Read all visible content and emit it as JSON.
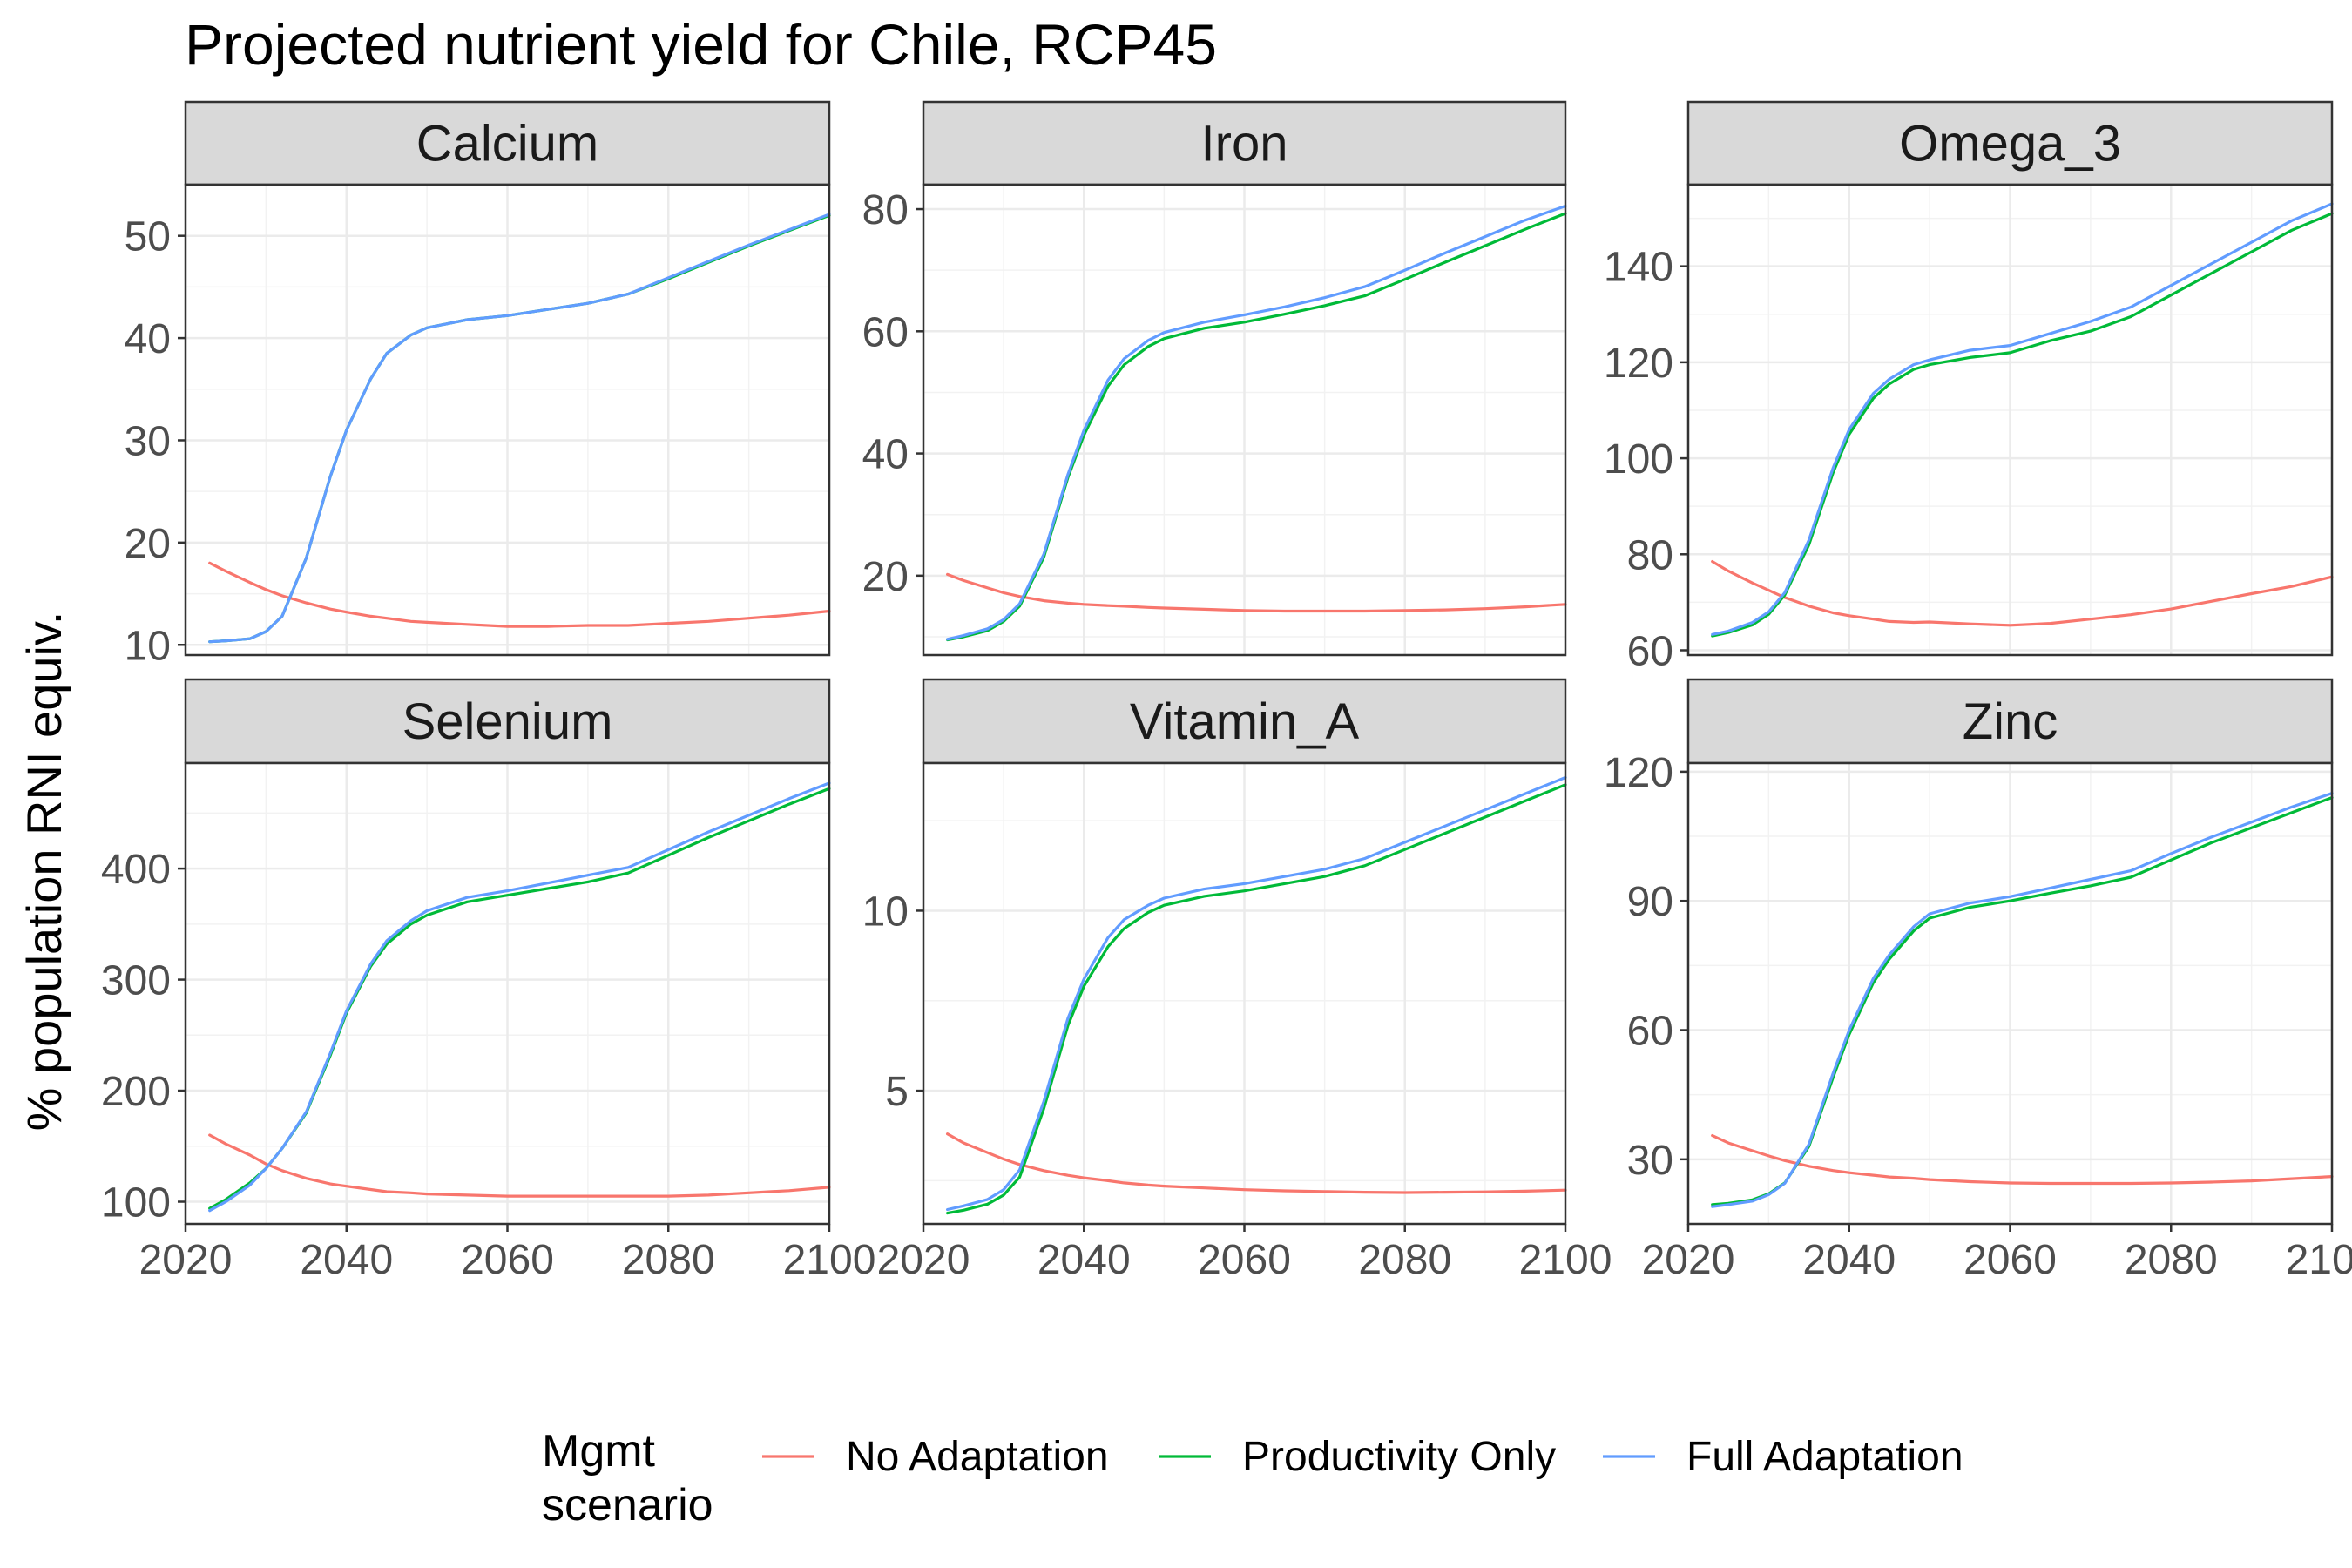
{
  "chart_data": {
    "type": "line",
    "title": "Projected nutrient yield for Chile, RCP45",
    "xlabel": "",
    "ylabel": "% population RNI equiv.",
    "xlim": [
      2020,
      2100
    ],
    "x_ticks": [
      2020,
      2040,
      2060,
      2080,
      2100
    ],
    "grid": true,
    "legend": {
      "position": "bottom",
      "title_lines": [
        "Mgmt",
        "scenario"
      ],
      "entries": [
        {
          "name": "No Adaptation",
          "color": "#F8766D"
        },
        {
          "name": "Productivity Only",
          "color": "#00BA38"
        },
        {
          "name": "Full Adaptation",
          "color": "#619CFF"
        }
      ]
    },
    "x": [
      2023,
      2025,
      2028,
      2030,
      2032,
      2035,
      2038,
      2040,
      2043,
      2045,
      2048,
      2050,
      2055,
      2060,
      2065,
      2070,
      2075,
      2080,
      2085,
      2090,
      2095,
      2100
    ],
    "panels": [
      {
        "name": "Calcium",
        "ylim": [
          9,
          55
        ],
        "y_ticks": [
          10,
          20,
          30,
          40,
          50
        ],
        "series": [
          {
            "name": "No Adaptation",
            "values": [
              18,
              17.2,
              16.1,
              15.4,
              14.8,
              14.1,
              13.5,
              13.2,
              12.8,
              12.6,
              12.3,
              12.2,
              12,
              11.8,
              11.8,
              11.9,
              11.9,
              12.1,
              12.3,
              12.6,
              12.9,
              13.3
            ]
          },
          {
            "name": "Productivity Only",
            "values": [
              10.3,
              10.4,
              10.6,
              11.3,
              12.8,
              18.5,
              26.5,
              31,
              36,
              38.5,
              40.3,
              41,
              41.8,
              42.2,
              42.8,
              43.4,
              44.3,
              45.8,
              47.4,
              49,
              50.5,
              52
            ]
          },
          {
            "name": "Full Adaptation",
            "values": [
              10.3,
              10.4,
              10.6,
              11.3,
              12.8,
              18.5,
              26.5,
              31,
              36,
              38.5,
              40.3,
              41,
              41.8,
              42.2,
              42.8,
              43.4,
              44.3,
              45.9,
              47.5,
              49.1,
              50.6,
              52.1
            ]
          }
        ]
      },
      {
        "name": "Iron",
        "ylim": [
          7,
          84
        ],
        "y_ticks": [
          20,
          40,
          60,
          80
        ],
        "series": [
          {
            "name": "No Adaptation",
            "values": [
              20.2,
              19.2,
              18,
              17.2,
              16.6,
              15.9,
              15.5,
              15.3,
              15.1,
              15,
              14.8,
              14.7,
              14.5,
              14.3,
              14.2,
              14.2,
              14.2,
              14.3,
              14.4,
              14.6,
              14.9,
              15.3
            ]
          },
          {
            "name": "Productivity Only",
            "values": [
              9.5,
              10,
              11,
              12.5,
              15,
              23,
              36,
              43,
              51,
              54.5,
              57.5,
              58.8,
              60.5,
              61.5,
              62.8,
              64.2,
              65.8,
              68.5,
              71.3,
              74,
              76.7,
              79.3
            ]
          },
          {
            "name": "Full Adaptation",
            "values": [
              9.6,
              10.2,
              11.3,
              12.8,
              15.4,
              23.5,
              36.5,
              43.8,
              52,
              55.5,
              58.5,
              59.8,
              61.5,
              62.7,
              64,
              65.5,
              67.3,
              70,
              72.8,
              75.5,
              78.2,
              80.5
            ]
          }
        ]
      },
      {
        "name": "Omega_3",
        "ylim": [
          59,
          157
        ],
        "y_ticks": [
          60,
          80,
          100,
          120,
          140
        ],
        "series": [
          {
            "name": "No Adaptation",
            "values": [
              78.5,
              76.5,
              74,
              72.5,
              71,
              69.2,
              67.8,
              67.2,
              66.5,
              66,
              65.8,
              65.9,
              65.5,
              65.2,
              65.6,
              66.5,
              67.4,
              68.6,
              70.2,
              71.8,
              73.3,
              75.3
            ]
          },
          {
            "name": "Productivity Only",
            "values": [
              63,
              63.7,
              65.3,
              67.5,
              71.5,
              82,
              97,
              105,
              112.5,
              115.5,
              118.5,
              119.5,
              121,
              122,
              124.5,
              126.5,
              129.5,
              134,
              138.5,
              143,
              147.5,
              151
            ]
          },
          {
            "name": "Full Adaptation",
            "values": [
              63.3,
              64,
              65.8,
              68,
              72,
              83,
              98,
              106,
              113.5,
              116.5,
              119.5,
              120.5,
              122.5,
              123.5,
              126,
              128.5,
              131.5,
              136,
              140.5,
              145,
              149.5,
              153
            ]
          }
        ]
      },
      {
        "name": "Selenium",
        "ylim": [
          80,
          495
        ],
        "y_ticks": [
          100,
          200,
          300,
          400
        ],
        "series": [
          {
            "name": "No Adaptation",
            "values": [
              160,
              152,
              142,
              134,
              128,
              121,
              116,
              114,
              111,
              109,
              108,
              107,
              106,
              105,
              105,
              105,
              105,
              105,
              106,
              108,
              110,
              113
            ]
          },
          {
            "name": "Productivity Only",
            "values": [
              94,
              102,
              117,
              130,
              148,
              180,
              232,
              270,
              312,
              332,
              350,
              358,
              370,
              376,
              382,
              388,
              396,
              412,
              428,
              443,
              458,
              472
            ]
          },
          {
            "name": "Full Adaptation",
            "values": [
              92,
              100,
              115,
              130,
              148,
              181,
              234,
              272,
              314,
              335,
              353,
              362,
              374,
              380,
              387,
              394,
              401,
              417,
              433,
              448,
              463,
              477
            ]
          }
        ]
      },
      {
        "name": "Vitamin_A",
        "ylim": [
          1.3,
          14.1
        ],
        "y_ticks": [
          5,
          10
        ],
        "series": [
          {
            "name": "No Adaptation",
            "values": [
              3.8,
              3.55,
              3.28,
              3.1,
              2.95,
              2.78,
              2.65,
              2.58,
              2.5,
              2.44,
              2.38,
              2.35,
              2.3,
              2.25,
              2.22,
              2.2,
              2.18,
              2.17,
              2.18,
              2.19,
              2.21,
              2.24
            ]
          },
          {
            "name": "Productivity Only",
            "values": [
              1.6,
              1.68,
              1.85,
              2.1,
              2.6,
              4.5,
              6.8,
              7.9,
              9,
              9.5,
              9.95,
              10.15,
              10.4,
              10.55,
              10.75,
              10.95,
              11.25,
              11.7,
              12.15,
              12.6,
              13.05,
              13.5
            ]
          },
          {
            "name": "Full Adaptation",
            "values": [
              1.7,
              1.8,
              1.98,
              2.25,
              2.8,
              4.7,
              7,
              8.1,
              9.25,
              9.75,
              10.15,
              10.35,
              10.6,
              10.75,
              10.95,
              11.15,
              11.45,
              11.9,
              12.35,
              12.8,
              13.25,
              13.7
            ]
          }
        ]
      },
      {
        "name": "Zinc",
        "ylim": [
          15,
          122
        ],
        "y_ticks": [
          30,
          60,
          90,
          120
        ],
        "series": [
          {
            "name": "No Adaptation",
            "values": [
              35.5,
              33.8,
              32,
              30.8,
              29.7,
              28.4,
              27.4,
              26.9,
              26.3,
              25.9,
              25.6,
              25.3,
              24.8,
              24.5,
              24.4,
              24.4,
              24.4,
              24.5,
              24.7,
              25,
              25.5,
              26
            ]
          },
          {
            "name": "Productivity Only",
            "values": [
              19.5,
              19.8,
              20.6,
              22,
              24.5,
              33,
              49,
              59,
              71,
              76.5,
              83,
              86,
              88.5,
              90,
              91.8,
              93.5,
              95.5,
              99.5,
              103.5,
              107,
              110.5,
              114
            ]
          },
          {
            "name": "Full Adaptation",
            "values": [
              19,
              19.5,
              20.3,
              21.8,
              24.4,
              33.5,
              50,
              60,
              72,
              77.5,
              84,
              87,
              89.5,
              91,
              93,
              95,
              97,
              101,
              104.8,
              108.3,
              111.8,
              115
            ]
          }
        ]
      }
    ]
  }
}
